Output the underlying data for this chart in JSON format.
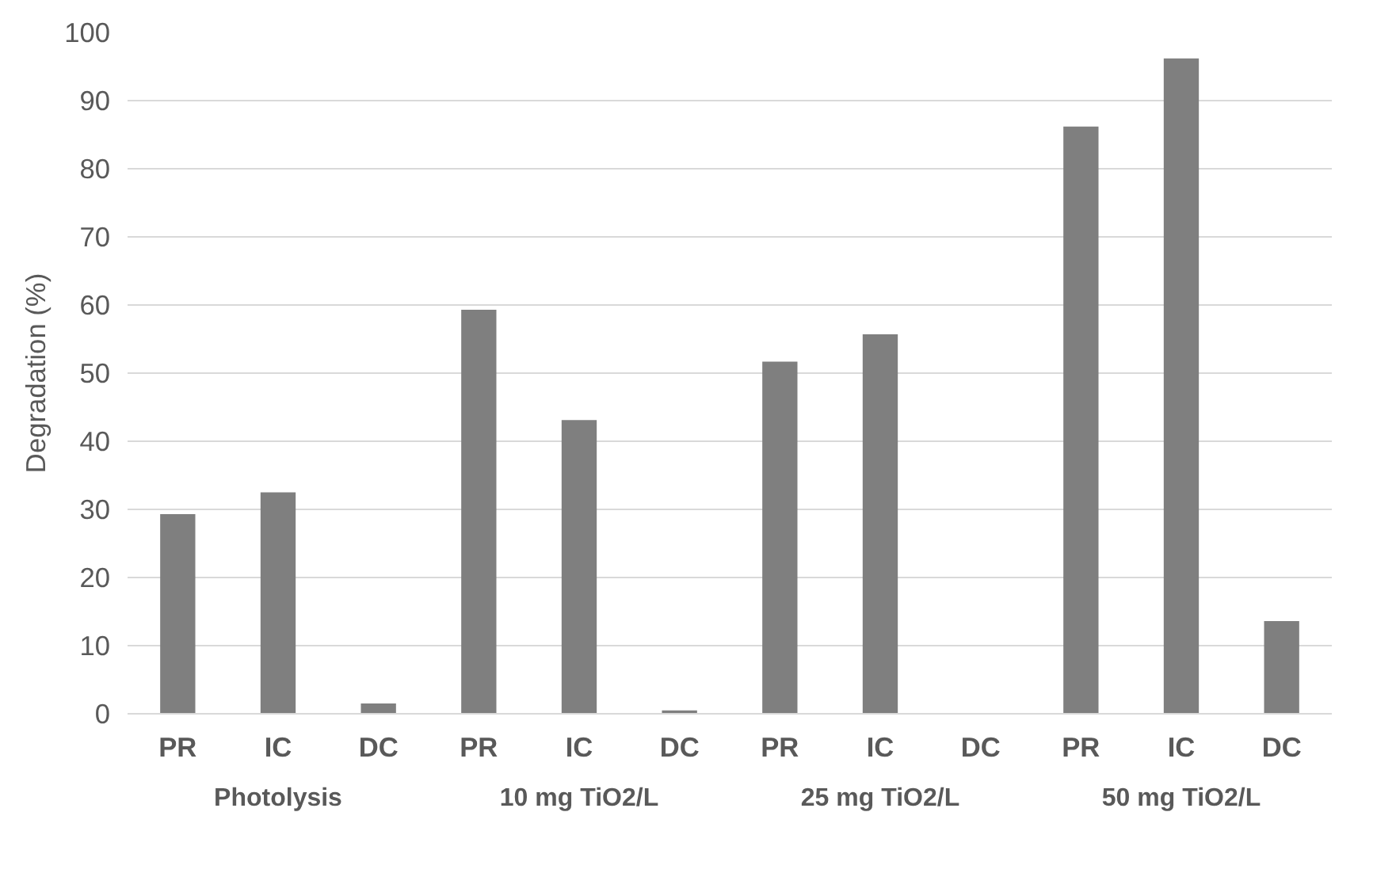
{
  "chart_data": {
    "type": "bar",
    "ylabel": "Degradation (%)",
    "categories": [
      "PR",
      "IC",
      "DC",
      "PR",
      "IC",
      "DC",
      "PR",
      "IC",
      "DC",
      "PR",
      "IC",
      "DC"
    ],
    "values": [
      29.3,
      32.5,
      1.5,
      59.3,
      43.1,
      0.5,
      51.7,
      55.7,
      0,
      86.2,
      96.2,
      13.6
    ],
    "color": "#7f7f7f",
    "ylim": [
      0,
      100
    ],
    "yticks": [
      0,
      10,
      20,
      30,
      40,
      50,
      60,
      70,
      80,
      90,
      100
    ],
    "grid": "y",
    "annotations": [
      "Photolysis",
      "10 mg TiO2/L",
      "25 mg TiO2/L",
      "50 mg TiO2/L"
    ]
  }
}
